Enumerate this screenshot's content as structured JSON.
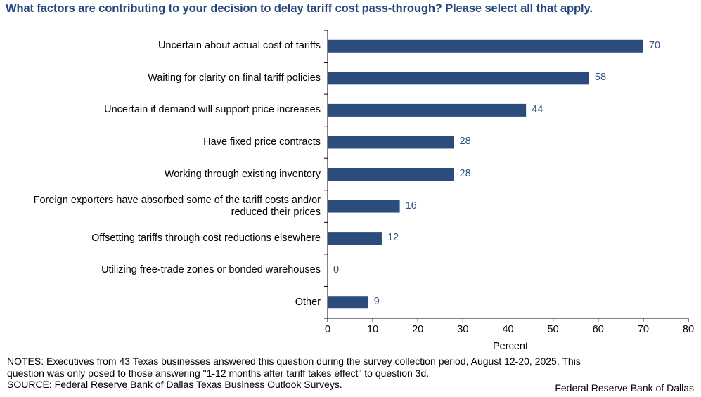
{
  "title": "What factors are contributing to your decision to delay tariff cost pass-through? Please select all that apply.",
  "notes_line1": "NOTES: Executives from 43 Texas businesses answered this question during the survey collection period, August 12-20, 2025. This",
  "notes_line2": "question was only posed to those answering \"1-12 months after tariff takes effect\" to question 3d.",
  "source": "SOURCE: Federal Reserve Bank of Dallas Texas Business Outlook Surveys.",
  "credit": "Federal Reserve Bank of Dallas",
  "chart_data": {
    "type": "bar",
    "orientation": "horizontal",
    "categories": [
      "Uncertain about actual cost of tariffs",
      "Waiting for clarity on final tariff policies",
      "Uncertain if demand will support price increases",
      "Have fixed price contracts",
      "Working through existing inventory",
      "Foreign exporters have absorbed some of the tariff costs and/or reduced their prices",
      "Offsetting tariffs through cost reductions elsewhere",
      "Utilizing free-trade zones or bonded warehouses",
      "Other"
    ],
    "values": [
      70,
      58,
      44,
      28,
      28,
      16,
      12,
      0,
      9
    ],
    "xlabel": "Percent",
    "ylabel": "",
    "xlim": [
      0,
      80
    ],
    "xticks": [
      0,
      10,
      20,
      30,
      40,
      50,
      60,
      70,
      80
    ],
    "bar_color": "#2c4d7c",
    "value_label_color": "#2f4f7f",
    "grid": false
  }
}
